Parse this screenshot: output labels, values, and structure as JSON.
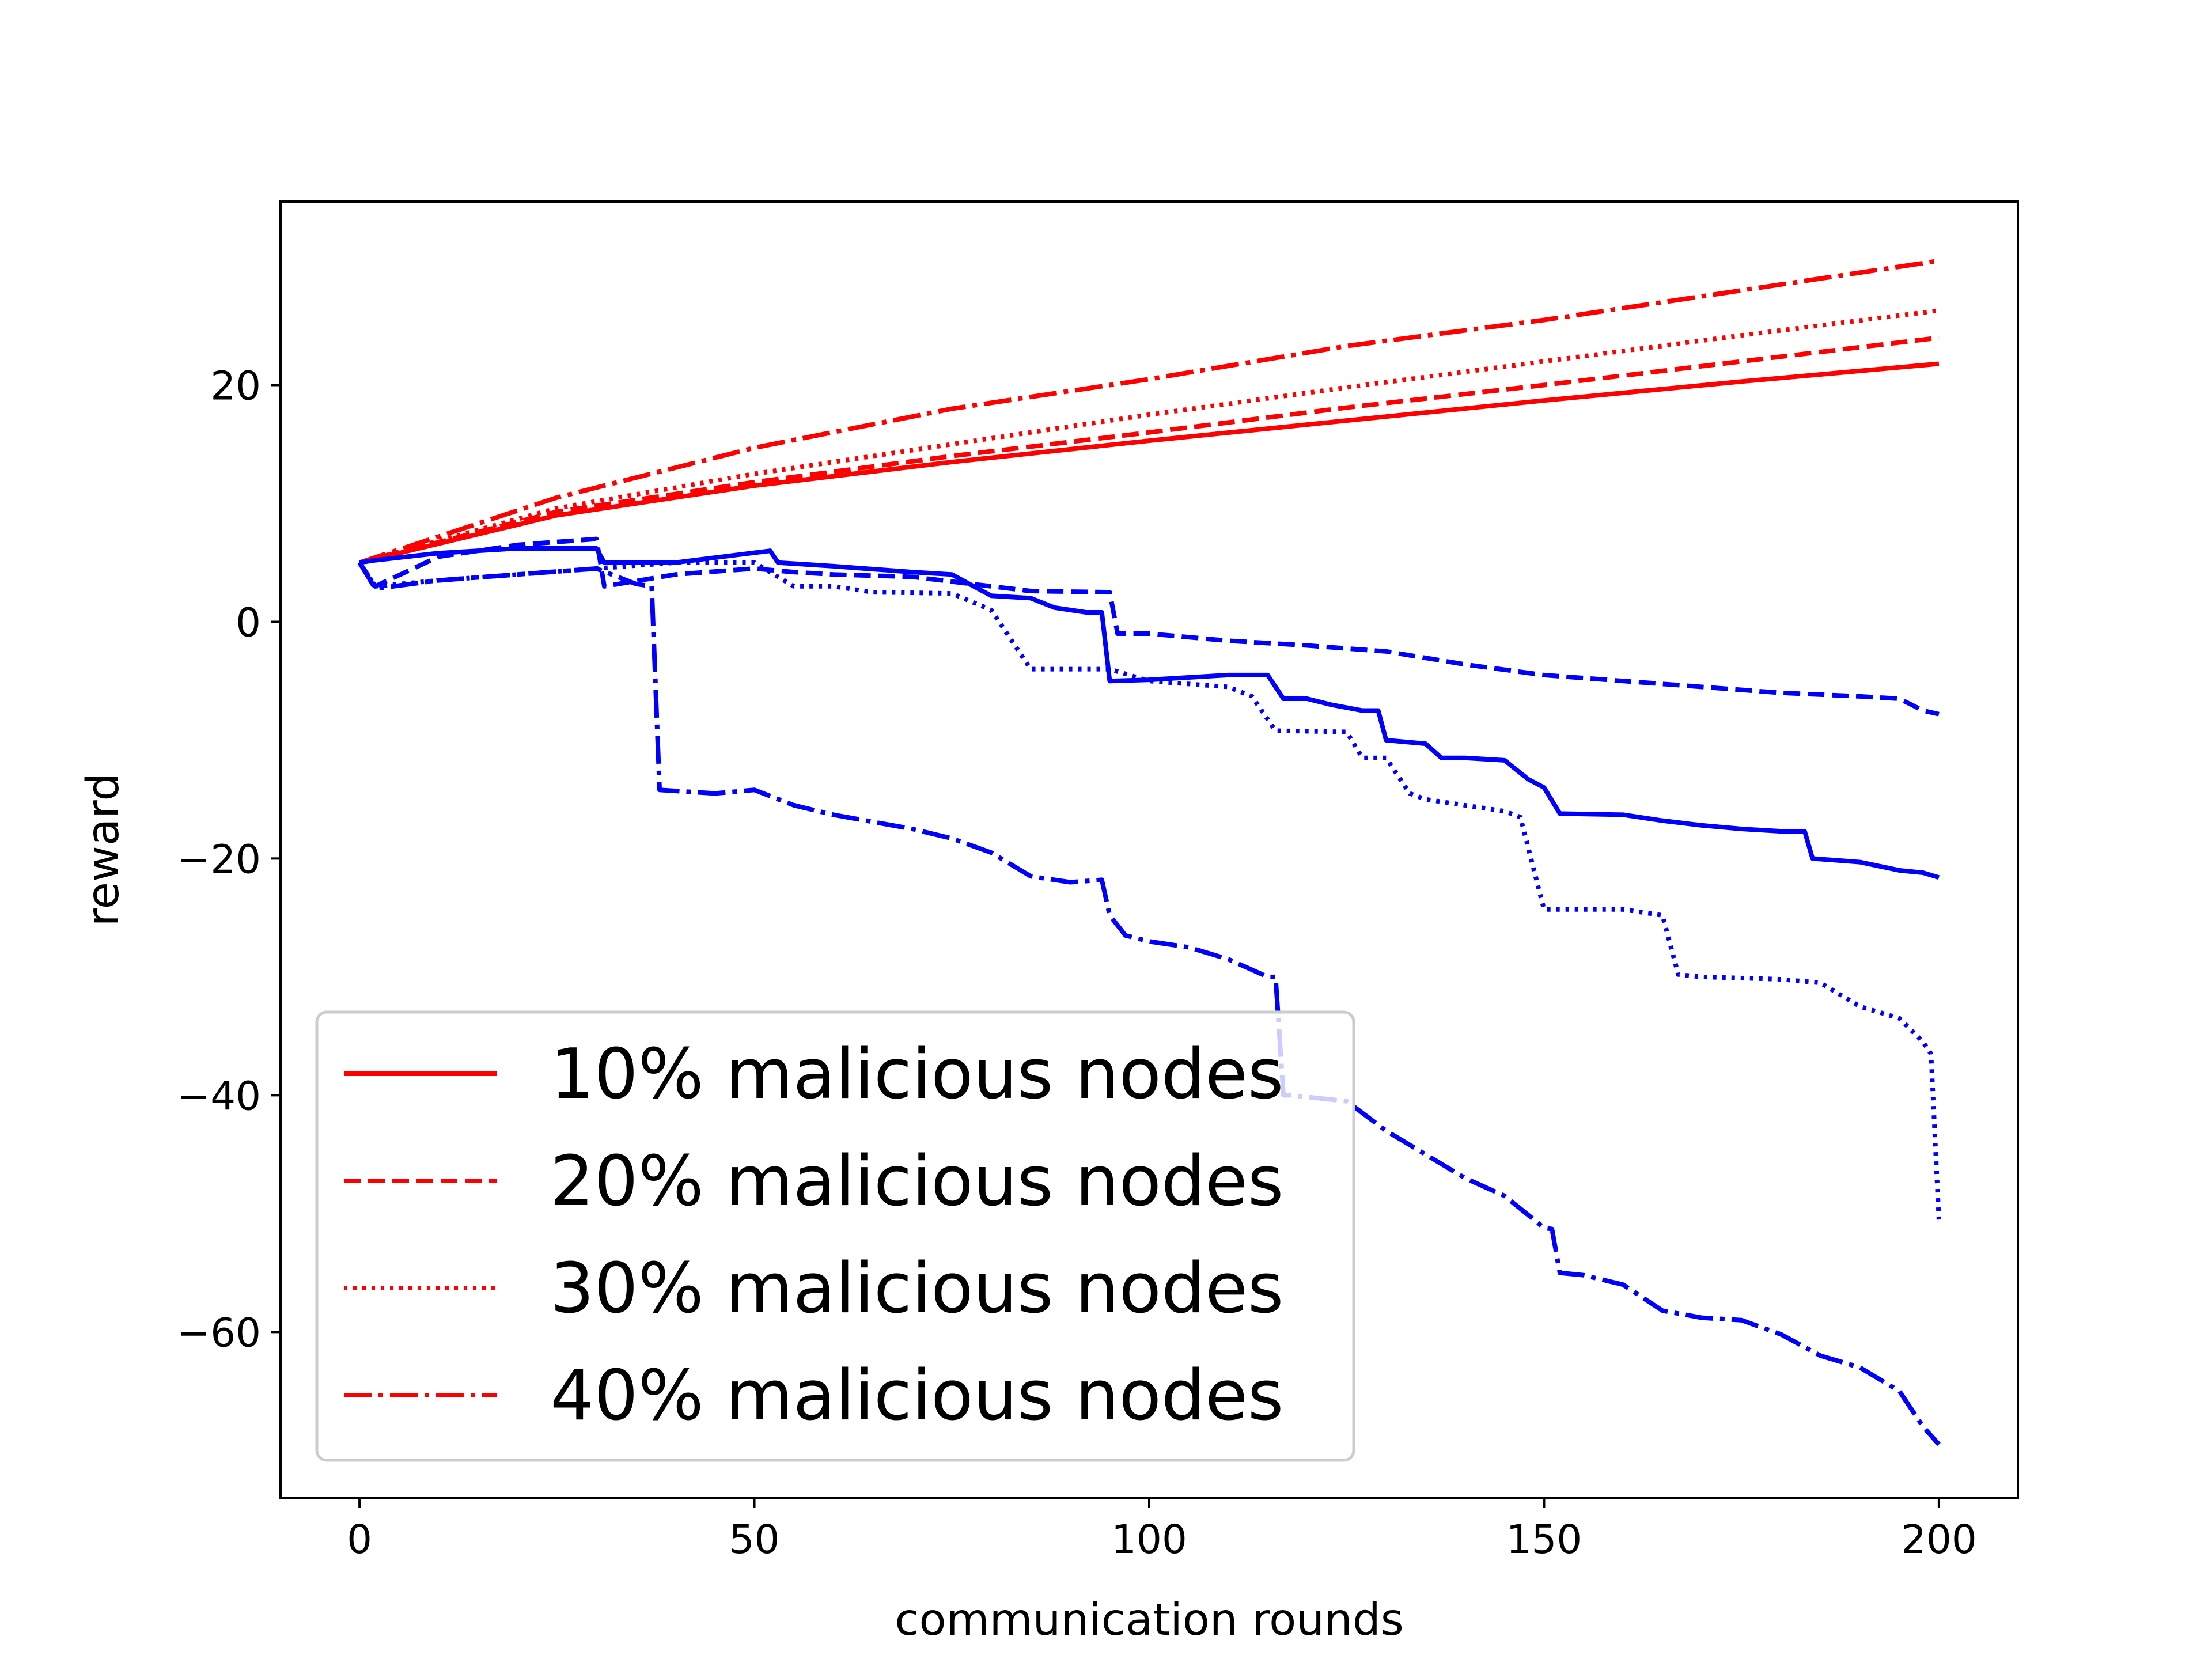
{
  "chart_data": {
    "type": "line",
    "title": "",
    "xlabel": "communication rounds",
    "ylabel": "reward",
    "xlim": [
      -10,
      210
    ],
    "ylim": [
      -74,
      35.5
    ],
    "xticks": [
      0,
      50,
      100,
      150,
      200
    ],
    "xtick_labels": [
      "0",
      "50",
      "100",
      "150",
      "200"
    ],
    "yticks": [
      20,
      0,
      -20,
      -40,
      -60
    ],
    "ytick_labels": [
      "20",
      "0",
      "−20",
      "−40",
      "−60"
    ],
    "grid": false,
    "legend_position": "lower-left",
    "colors": {
      "red": "#ff0000",
      "blue": "#0000ff"
    },
    "series": [
      {
        "name": "10% malicious nodes",
        "color": "#ff0000",
        "style": "solid",
        "x": [
          0,
          25,
          50,
          75,
          100,
          125,
          150,
          175,
          200
        ],
        "y": [
          5,
          9,
          11.5,
          13.5,
          15.3,
          17,
          18.7,
          20.3,
          21.8
        ]
      },
      {
        "name": "20% malicious nodes",
        "color": "#ff0000",
        "style": "dashed",
        "x": [
          0,
          25,
          50,
          75,
          100,
          125,
          150,
          175,
          200
        ],
        "y": [
          5,
          9.3,
          11.8,
          14,
          16,
          18.1,
          20,
          22,
          24
        ]
      },
      {
        "name": "30% malicious nodes",
        "color": "#ff0000",
        "style": "dotted",
        "x": [
          0,
          25,
          50,
          75,
          100,
          125,
          150,
          175,
          200
        ],
        "y": [
          5,
          9.6,
          12.5,
          15,
          17.5,
          19.8,
          22,
          24.2,
          26.3
        ]
      },
      {
        "name": "40% malicious nodes",
        "color": "#ff0000",
        "style": "dashdot",
        "x": [
          0,
          25,
          50,
          75,
          100,
          125,
          150,
          175,
          200
        ],
        "y": [
          5,
          10.5,
          14.7,
          18,
          20.5,
          23.3,
          25.5,
          28,
          30.5
        ]
      },
      {
        "color": "#0000ff",
        "style": "solid",
        "x": [
          0,
          2,
          10,
          20,
          30,
          31,
          40,
          52,
          53,
          60,
          70,
          75,
          80,
          85,
          88,
          92,
          94,
          95,
          100,
          105,
          110,
          115,
          117,
          120,
          123,
          127,
          129,
          130,
          135,
          137,
          140,
          145,
          148,
          150,
          152,
          160,
          165,
          170,
          175,
          180,
          183,
          184,
          190,
          195,
          198,
          200
        ],
        "y": [
          5,
          5.2,
          5.8,
          6.2,
          6.2,
          5,
          5,
          6,
          5,
          4.7,
          4.2,
          4,
          2.2,
          2,
          1.2,
          0.8,
          0.8,
          -5,
          -4.9,
          -4.7,
          -4.5,
          -4.5,
          -6.5,
          -6.5,
          -7,
          -7.5,
          -7.5,
          -10,
          -10.3,
          -11.5,
          -11.5,
          -11.7,
          -13.3,
          -14,
          -16.2,
          -16.3,
          -16.8,
          -17.2,
          -17.5,
          -17.7,
          -17.7,
          -20,
          -20.3,
          -21,
          -21.2,
          -21.6
        ]
      },
      {
        "color": "#0000ff",
        "style": "dashed",
        "x": [
          0,
          2,
          10,
          20,
          30,
          31,
          40,
          50,
          55,
          60,
          70,
          80,
          85,
          95,
          96,
          100,
          110,
          120,
          130,
          140,
          150,
          160,
          170,
          180,
          190,
          195,
          198,
          200
        ],
        "y": [
          5,
          3,
          5.5,
          6.5,
          7,
          3,
          4,
          4.5,
          4.2,
          4,
          3.8,
          3,
          2.6,
          2.5,
          -1,
          -1,
          -1.6,
          -2,
          -2.5,
          -3.6,
          -4.5,
          -5,
          -5.5,
          -6,
          -6.3,
          -6.5,
          -7.5,
          -7.8
        ]
      },
      {
        "color": "#0000ff",
        "style": "dotted",
        "x": [
          0,
          2,
          10,
          20,
          30,
          40,
          50,
          55,
          60,
          65,
          75,
          80,
          85,
          95,
          100,
          110,
          113,
          116,
          125,
          127,
          130,
          133,
          135,
          145,
          147,
          150,
          160,
          165,
          167,
          170,
          180,
          185,
          190,
          195,
          198,
          199,
          200
        ],
        "y": [
          5,
          3,
          3.5,
          4,
          4.5,
          5,
          5,
          3,
          3,
          2.5,
          2.4,
          1,
          -4,
          -4,
          -5,
          -5.5,
          -6.3,
          -9.2,
          -9.3,
          -11.5,
          -11.5,
          -14.5,
          -15,
          -16,
          -16.5,
          -24.3,
          -24.3,
          -24.8,
          -29.8,
          -30,
          -30.2,
          -30.5,
          -32.5,
          -33.5,
          -35.5,
          -36.5,
          -50.5
        ]
      },
      {
        "color": "#0000ff",
        "style": "dashdot",
        "x": [
          0,
          2,
          10,
          20,
          30,
          35,
          37,
          38,
          45,
          50,
          55,
          60,
          70,
          75,
          80,
          85,
          90,
          94,
          95,
          97,
          100,
          105,
          110,
          115,
          116,
          117,
          118,
          125,
          130,
          135,
          140,
          145,
          150,
          151,
          152,
          155,
          160,
          165,
          170,
          175,
          180,
          185,
          190,
          195,
          198,
          200
        ],
        "y": [
          5,
          2.8,
          3.5,
          4,
          4.5,
          3.2,
          3,
          -14.2,
          -14.5,
          -14.2,
          -15.5,
          -16.3,
          -17.5,
          -18.3,
          -19.5,
          -21.5,
          -22,
          -21.8,
          -24.8,
          -26.5,
          -27,
          -27.5,
          -28.5,
          -30,
          -30,
          -40,
          -40,
          -40.5,
          -43,
          -45,
          -47,
          -48.5,
          -51.2,
          -51.3,
          -55,
          -55.2,
          -56,
          -58.2,
          -58.8,
          -59,
          -60.2,
          -62,
          -63,
          -65,
          -68,
          -69.5
        ]
      }
    ]
  }
}
